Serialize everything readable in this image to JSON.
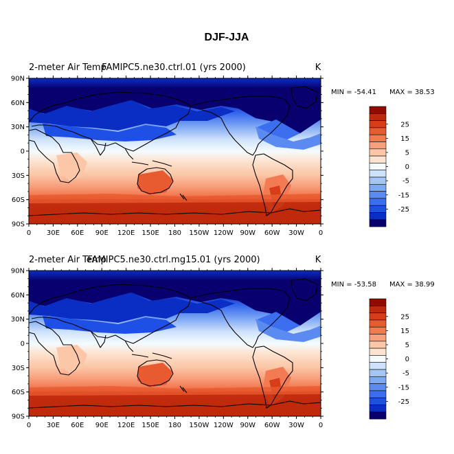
{
  "figure_title": "DJF-JJA",
  "chart_data": [
    {
      "type": "heatmap",
      "map_projection": "cylindrical-equidistant",
      "title_left": "2-meter Air Temp",
      "title_center": "FAMIPC5.ne30.ctrl.01 (yrs 2000)",
      "units": "K",
      "min_label": "MIN = -54.41",
      "max_label": "MAX =  38.53",
      "min": -54.41,
      "max": 38.53,
      "lat_ticks": [
        "90N",
        "60N",
        "30N",
        "0",
        "30S",
        "60S",
        "90S"
      ],
      "lon_ticks": [
        "0",
        "30E",
        "60E",
        "90E",
        "120E",
        "150E",
        "180",
        "150W",
        "120W",
        "90W",
        "60W",
        "30W",
        "0"
      ],
      "colorbar_levels": [
        -35,
        -30,
        -25,
        -20,
        -15,
        -10,
        -5,
        -2,
        0,
        2,
        5,
        10,
        15,
        20,
        25,
        30,
        35
      ],
      "colorbar_labels": [
        "25",
        "15",
        "5",
        "0",
        "-5",
        "-15",
        "-25"
      ]
    },
    {
      "type": "heatmap",
      "map_projection": "cylindrical-equidistant",
      "title_left": "2-meter Air Temp",
      "title_center": "FAMIPC5.ne30.ctrl.mg15.01 (yrs 2000)",
      "units": "K",
      "min_label": "MIN = -53.58",
      "max_label": "MAX =  38.99",
      "min": -53.58,
      "max": 38.99,
      "lat_ticks": [
        "90N",
        "60N",
        "30N",
        "0",
        "30S",
        "60S",
        "90S"
      ],
      "lon_ticks": [
        "0",
        "30E",
        "60E",
        "90E",
        "120E",
        "150E",
        "180",
        "150W",
        "120W",
        "90W",
        "60W",
        "30W",
        "0"
      ],
      "colorbar_levels": [
        -35,
        -30,
        -25,
        -20,
        -15,
        -10,
        -5,
        -2,
        0,
        2,
        5,
        10,
        15,
        20,
        25,
        30,
        35
      ],
      "colorbar_labels": [
        "25",
        "15",
        "5",
        "0",
        "-5",
        "-15",
        "-25"
      ]
    }
  ],
  "colors": {
    "bins": [
      "#08006e",
      "#0a2ec4",
      "#1e50e6",
      "#3c6ff0",
      "#5b8bf0",
      "#7ea7f4",
      "#a6c5f7",
      "#cfe2fb",
      "#f4fbff",
      "#fde3cf",
      "#fbc7a8",
      "#f8a07c",
      "#f37b53",
      "#e85a30",
      "#d73d18",
      "#c02a0c",
      "#8e0c00"
    ],
    "coast": "#000000"
  }
}
